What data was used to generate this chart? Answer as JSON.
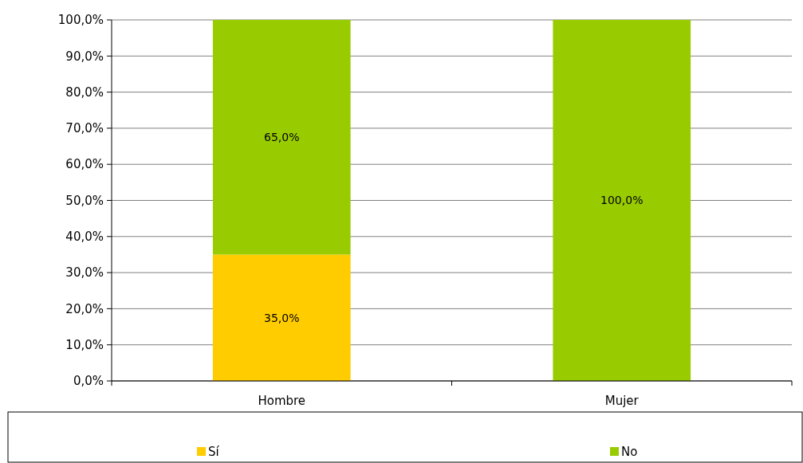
{
  "chart_data": {
    "type": "bar",
    "stacked": true,
    "categories": [
      "Hombre",
      "Mujer"
    ],
    "series": [
      {
        "name": "Sí",
        "color": "#ffcc00",
        "values": [
          35,
          0
        ],
        "value_labels": [
          "35,0%",
          null
        ]
      },
      {
        "name": "No",
        "color": "#99cc00",
        "values": [
          65,
          100
        ],
        "value_labels": [
          "65,0%",
          "100,0%"
        ]
      }
    ],
    "ylim": [
      0,
      100
    ],
    "yticks": [
      {
        "value": 0,
        "label": "0,0%"
      },
      {
        "value": 10,
        "label": "10,0%"
      },
      {
        "value": 20,
        "label": "20,0%"
      },
      {
        "value": 30,
        "label": "30,0%"
      },
      {
        "value": 40,
        "label": "40,0%"
      },
      {
        "value": 50,
        "label": "50,0%"
      },
      {
        "value": 60,
        "label": "60,0%"
      },
      {
        "value": 70,
        "label": "70,0%"
      },
      {
        "value": 80,
        "label": "80,0%"
      },
      {
        "value": 90,
        "label": "90,0%"
      },
      {
        "value": 100,
        "label": "100,0%"
      }
    ],
    "grid": "y",
    "legend": "bottom"
  }
}
